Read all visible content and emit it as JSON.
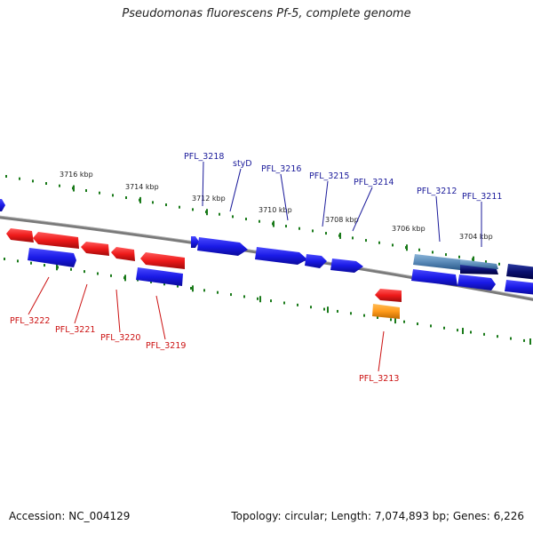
{
  "title": "Pseudomonas fluorescens Pf-5, complete genome",
  "footer": {
    "accession": "Accession: NC_004129",
    "summary": "Topology: circular; Length: 7,074,893 bp; Genes: 6,226"
  },
  "kbp_labels": [
    "3716 kbp",
    "3714 kbp",
    "3712 kbp",
    "3710 kbp",
    "3708 kbp",
    "3706 kbp",
    "3704 kbp"
  ],
  "gene_labels_top": [
    "PFL_3218",
    "styD",
    "PFL_3216",
    "PFL_3215",
    "PFL_3214",
    "PFL_3212",
    "PFL_3211"
  ],
  "gene_labels_bottom": [
    "PFL_3222",
    "PFL_3221",
    "PFL_3220",
    "PFL_3219",
    "PFL_3213"
  ],
  "colors": {
    "forward_gene": "#1a1ae6",
    "reverse_gene": "#e61a1a",
    "highlight_gene": "#ff9a1a",
    "pale_gene": "#5a8ab8",
    "navy_gene": "#0a1070",
    "top_label": "#1a1a9a",
    "bottom_label": "#cc1111",
    "dots": "#1a7a1a",
    "backbone": "#7a7a7a"
  }
}
